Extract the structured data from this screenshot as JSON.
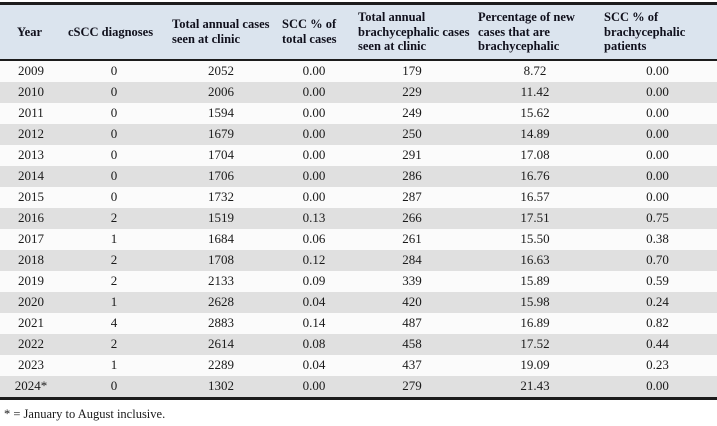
{
  "table": {
    "columns": [
      {
        "label": "Year"
      },
      {
        "label": "cSCC diagnoses"
      },
      {
        "label": "Total annual cases seen at clinic"
      },
      {
        "label": "SCC % of total cases"
      },
      {
        "label": "Total annual brachycephalic cases seen at clinic"
      },
      {
        "label": "Percentage of new cases that are brachycephalic"
      },
      {
        "label": "SCC % of brachycephalic patients"
      }
    ],
    "rows": [
      [
        "2009",
        "0",
        "2052",
        "0.00",
        "179",
        "8.72",
        "0.00"
      ],
      [
        "2010",
        "0",
        "2006",
        "0.00",
        "229",
        "11.42",
        "0.00"
      ],
      [
        "2011",
        "0",
        "1594",
        "0.00",
        "249",
        "15.62",
        "0.00"
      ],
      [
        "2012",
        "0",
        "1679",
        "0.00",
        "250",
        "14.89",
        "0.00"
      ],
      [
        "2013",
        "0",
        "1704",
        "0.00",
        "291",
        "17.08",
        "0.00"
      ],
      [
        "2014",
        "0",
        "1706",
        "0.00",
        "286",
        "16.76",
        "0.00"
      ],
      [
        "2015",
        "0",
        "1732",
        "0.00",
        "287",
        "16.57",
        "0.00"
      ],
      [
        "2016",
        "2",
        "1519",
        "0.13",
        "266",
        "17.51",
        "0.75"
      ],
      [
        "2017",
        "1",
        "1684",
        "0.06",
        "261",
        "15.50",
        "0.38"
      ],
      [
        "2018",
        "2",
        "1708",
        "0.12",
        "284",
        "16.63",
        "0.70"
      ],
      [
        "2019",
        "2",
        "2133",
        "0.09",
        "339",
        "15.89",
        "0.59"
      ],
      [
        "2020",
        "1",
        "2628",
        "0.04",
        "420",
        "15.98",
        "0.24"
      ],
      [
        "2021",
        "4",
        "2883",
        "0.14",
        "487",
        "16.89",
        "0.82"
      ],
      [
        "2022",
        "2",
        "2614",
        "0.08",
        "458",
        "17.52",
        "0.44"
      ],
      [
        "2023",
        "1",
        "2289",
        "0.04",
        "437",
        "19.09",
        "0.23"
      ],
      [
        "2024*",
        "0",
        "1302",
        "0.00",
        "279",
        "21.43",
        "0.00"
      ]
    ],
    "footnote": "* = January to August inclusive."
  },
  "colors": {
    "header_bg": "#dbe4ee",
    "row_bg": "#fbfbfb",
    "row_alt_bg": "#e0e0e0",
    "rule": "#1c1c1c"
  }
}
